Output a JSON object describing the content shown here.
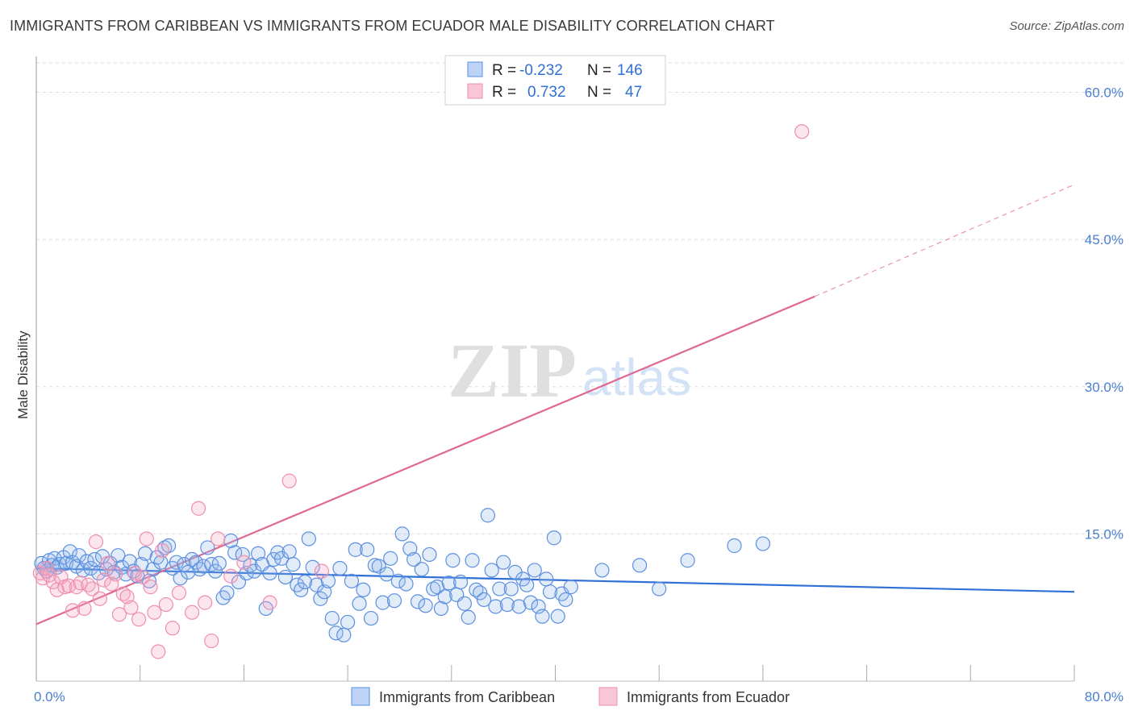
{
  "title": "IMMIGRANTS FROM CARIBBEAN VS IMMIGRANTS FROM ECUADOR MALE DISABILITY CORRELATION CHART",
  "source": "Source: ZipAtlas.com",
  "colors": {
    "blue": "#5b8fe0",
    "blue_line": "#2f6fd6",
    "pink": "#ee8fae",
    "pink_line": "#e06890"
  },
  "chart_data": {
    "type": "scatter",
    "ylabel": "Male Disability",
    "x_tick_labels": [
      "0.0%",
      "80.0%"
    ],
    "y_tick_labels": [
      "15.0%",
      "30.0%",
      "45.0%",
      "60.0%"
    ],
    "y_ticks": [
      15,
      30,
      45,
      60
    ],
    "xlim": [
      0,
      80
    ],
    "ylim": [
      0,
      63
    ],
    "watermark": "ZIPatlas",
    "legend": {
      "rows": [
        {
          "r_label": "R =",
          "r_value": "-0.232",
          "n_label": "N =",
          "n_value": "146"
        },
        {
          "r_label": "R =",
          "r_value": "0.732",
          "n_label": "N =",
          "n_value": "47"
        }
      ]
    },
    "series": [
      {
        "name": "Immigrants from Caribbean",
        "trend": {
          "x0": 0,
          "y0": 11.5,
          "x1": 80,
          "y1": 9.1
        },
        "points": [
          [
            0.4,
            12.0
          ],
          [
            0.6,
            11.5
          ],
          [
            0.8,
            11.2
          ],
          [
            1.0,
            12.3
          ],
          [
            1.2,
            11.8
          ],
          [
            1.4,
            12.5
          ],
          [
            1.6,
            11.6
          ],
          [
            1.8,
            11.9
          ],
          [
            2.1,
            12.6
          ],
          [
            2.3,
            12.0
          ],
          [
            2.6,
            13.2
          ],
          [
            2.8,
            12.1
          ],
          [
            3.1,
            11.7
          ],
          [
            3.3,
            12.8
          ],
          [
            3.6,
            11.3
          ],
          [
            3.9,
            12.2
          ],
          [
            4.2,
            11.5
          ],
          [
            4.5,
            12.4
          ],
          [
            4.8,
            11.0
          ],
          [
            5.1,
            12.7
          ],
          [
            5.4,
            11.4
          ],
          [
            5.7,
            12.0
          ],
          [
            6.0,
            11.1
          ],
          [
            6.3,
            12.8
          ],
          [
            6.6,
            11.6
          ],
          [
            6.9,
            10.9
          ],
          [
            7.2,
            12.2
          ],
          [
            7.5,
            11.2
          ],
          [
            7.8,
            10.7
          ],
          [
            8.1,
            11.9
          ],
          [
            8.4,
            13.0
          ],
          [
            8.7,
            10.2
          ],
          [
            9.0,
            11.4
          ],
          [
            9.3,
            12.6
          ],
          [
            9.6,
            12.1
          ],
          [
            9.9,
            13.6
          ],
          [
            10.2,
            13.8
          ],
          [
            10.5,
            11.5
          ],
          [
            10.8,
            12.1
          ],
          [
            11.1,
            10.5
          ],
          [
            11.4,
            11.9
          ],
          [
            11.7,
            11.1
          ],
          [
            12.0,
            12.4
          ],
          [
            12.3,
            12.1
          ],
          [
            12.6,
            11.4
          ],
          [
            12.9,
            11.7
          ],
          [
            13.2,
            13.6
          ],
          [
            13.5,
            11.9
          ],
          [
            13.8,
            11.2
          ],
          [
            14.1,
            12.0
          ],
          [
            14.4,
            8.5
          ],
          [
            14.7,
            9.0
          ],
          [
            15.0,
            14.3
          ],
          [
            15.3,
            13.1
          ],
          [
            15.6,
            10.1
          ],
          [
            15.9,
            12.9
          ],
          [
            16.2,
            11.0
          ],
          [
            16.5,
            11.8
          ],
          [
            16.8,
            11.2
          ],
          [
            17.1,
            13.0
          ],
          [
            17.4,
            11.9
          ],
          [
            17.7,
            7.4
          ],
          [
            18.0,
            11.0
          ],
          [
            18.3,
            12.4
          ],
          [
            18.6,
            13.1
          ],
          [
            18.9,
            12.5
          ],
          [
            19.2,
            10.6
          ],
          [
            19.5,
            13.2
          ],
          [
            19.8,
            11.9
          ],
          [
            20.1,
            9.8
          ],
          [
            20.4,
            9.3
          ],
          [
            20.7,
            10.1
          ],
          [
            21.0,
            14.5
          ],
          [
            21.3,
            11.6
          ],
          [
            21.6,
            9.8
          ],
          [
            21.9,
            8.4
          ],
          [
            22.2,
            9.1
          ],
          [
            22.5,
            10.2
          ],
          [
            22.8,
            6.4
          ],
          [
            23.1,
            4.9
          ],
          [
            23.4,
            11.5
          ],
          [
            23.7,
            4.7
          ],
          [
            24.0,
            6.0
          ],
          [
            24.3,
            10.2
          ],
          [
            24.6,
            13.4
          ],
          [
            24.9,
            7.9
          ],
          [
            25.2,
            9.3
          ],
          [
            25.5,
            13.4
          ],
          [
            25.8,
            6.4
          ],
          [
            26.1,
            11.8
          ],
          [
            26.4,
            11.7
          ],
          [
            26.7,
            8.0
          ],
          [
            27.0,
            10.9
          ],
          [
            27.3,
            12.5
          ],
          [
            27.6,
            8.2
          ],
          [
            27.9,
            10.2
          ],
          [
            28.2,
            15.0
          ],
          [
            28.5,
            9.9
          ],
          [
            28.8,
            13.5
          ],
          [
            29.1,
            12.4
          ],
          [
            29.4,
            8.1
          ],
          [
            29.7,
            11.4
          ],
          [
            30.0,
            7.7
          ],
          [
            30.3,
            12.9
          ],
          [
            30.6,
            9.4
          ],
          [
            30.9,
            9.6
          ],
          [
            31.2,
            7.4
          ],
          [
            31.5,
            8.6
          ],
          [
            31.8,
            10.0
          ],
          [
            32.1,
            12.3
          ],
          [
            32.4,
            8.8
          ],
          [
            32.7,
            10.1
          ],
          [
            33.0,
            7.9
          ],
          [
            33.3,
            6.5
          ],
          [
            33.6,
            12.3
          ],
          [
            33.9,
            9.3
          ],
          [
            34.2,
            9.0
          ],
          [
            34.5,
            8.3
          ],
          [
            34.8,
            16.9
          ],
          [
            35.1,
            11.3
          ],
          [
            35.4,
            7.6
          ],
          [
            35.7,
            9.4
          ],
          [
            36.0,
            12.1
          ],
          [
            36.3,
            7.8
          ],
          [
            36.6,
            9.4
          ],
          [
            36.9,
            11.1
          ],
          [
            37.2,
            7.6
          ],
          [
            37.5,
            10.4
          ],
          [
            37.8,
            9.8
          ],
          [
            38.1,
            8.0
          ],
          [
            38.4,
            11.3
          ],
          [
            38.7,
            7.6
          ],
          [
            39.0,
            6.6
          ],
          [
            39.3,
            10.4
          ],
          [
            39.6,
            9.1
          ],
          [
            39.9,
            14.6
          ],
          [
            40.2,
            6.6
          ],
          [
            40.5,
            8.9
          ],
          [
            40.8,
            8.3
          ],
          [
            41.2,
            9.6
          ],
          [
            43.6,
            11.3
          ],
          [
            46.5,
            11.8
          ],
          [
            48.0,
            9.4
          ],
          [
            50.2,
            12.3
          ],
          [
            53.8,
            13.8
          ],
          [
            56.0,
            14.0
          ]
        ]
      },
      {
        "name": "Immigrants from Ecuador",
        "trend": {
          "x0": 0,
          "y0": 5.8,
          "x1": 60,
          "y1": 39.2,
          "x_ext": 80,
          "y_ext": 50.6
        },
        "points": [
          [
            0.3,
            11.0
          ],
          [
            0.5,
            10.5
          ],
          [
            0.8,
            11.5
          ],
          [
            1.0,
            10.8
          ],
          [
            1.3,
            10.1
          ],
          [
            1.6,
            9.3
          ],
          [
            1.9,
            10.6
          ],
          [
            2.2,
            9.6
          ],
          [
            2.5,
            9.7
          ],
          [
            2.8,
            7.2
          ],
          [
            3.1,
            9.6
          ],
          [
            3.4,
            10.0
          ],
          [
            3.7,
            7.4
          ],
          [
            4.0,
            9.8
          ],
          [
            4.3,
            9.4
          ],
          [
            4.6,
            14.2
          ],
          [
            4.9,
            8.4
          ],
          [
            5.2,
            10.3
          ],
          [
            5.5,
            12.0
          ],
          [
            5.8,
            9.9
          ],
          [
            6.1,
            10.9
          ],
          [
            6.4,
            6.8
          ],
          [
            6.7,
            8.9
          ],
          [
            7.0,
            8.6
          ],
          [
            7.3,
            7.5
          ],
          [
            7.6,
            11.0
          ],
          [
            7.9,
            6.3
          ],
          [
            8.2,
            10.6
          ],
          [
            8.5,
            14.5
          ],
          [
            8.8,
            9.6
          ],
          [
            9.1,
            7.0
          ],
          [
            9.4,
            3.0
          ],
          [
            9.7,
            13.3
          ],
          [
            10.0,
            7.8
          ],
          [
            10.5,
            5.4
          ],
          [
            11.0,
            9.0
          ],
          [
            12.0,
            7.0
          ],
          [
            12.5,
            17.6
          ],
          [
            13.0,
            8.0
          ],
          [
            13.5,
            4.1
          ],
          [
            14.0,
            14.5
          ],
          [
            15.0,
            10.7
          ],
          [
            16.0,
            12.1
          ],
          [
            18.0,
            8.0
          ],
          [
            19.5,
            20.4
          ],
          [
            22.0,
            11.2
          ],
          [
            59.0,
            56.0
          ]
        ]
      }
    ]
  }
}
